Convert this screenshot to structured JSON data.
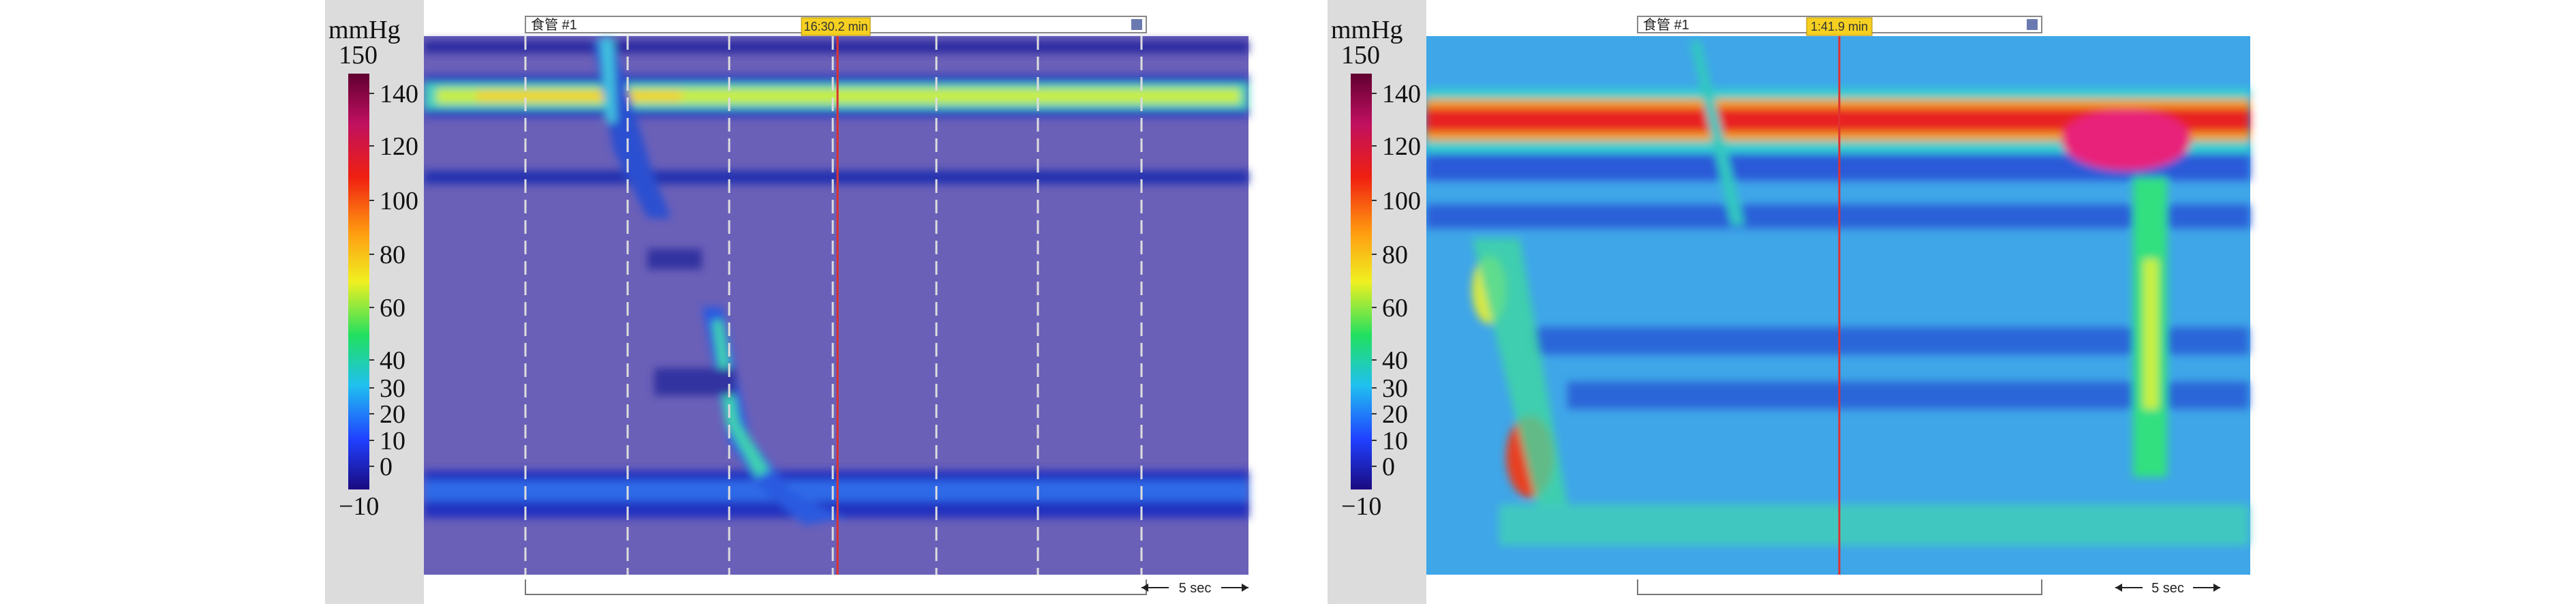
{
  "panels": [
    {
      "unit": "mmHg",
      "colorbar_ticks": [
        150,
        140,
        120,
        100,
        80,
        60,
        40,
        30,
        20,
        10,
        0,
        {
          "value": -10,
          "label": "−10"
        }
      ],
      "channel": "食管 #1",
      "time": "16:30.2 min",
      "scale": "5 sec"
    },
    {
      "unit": "mmHg",
      "colorbar_ticks": [
        150,
        140,
        120,
        100,
        80,
        60,
        40,
        30,
        20,
        10,
        0,
        {
          "value": -10,
          "label": "−10"
        }
      ],
      "channel": "食管 #1",
      "time": "1:41.9 min",
      "scale": "5 sec"
    }
  ]
}
